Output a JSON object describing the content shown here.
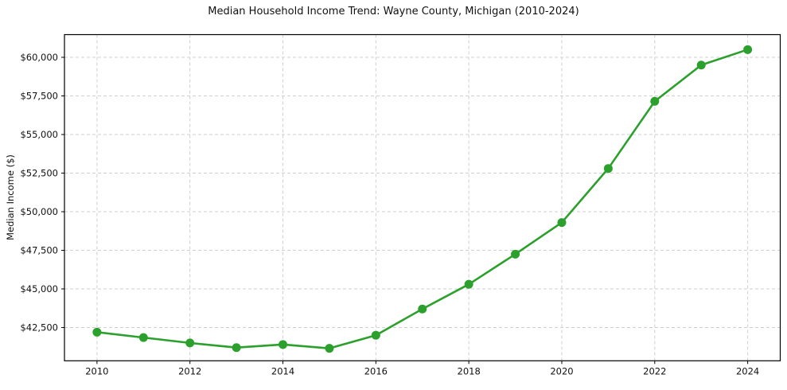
{
  "chart_data": {
    "type": "line",
    "title": "Median Household Income Trend: Wayne County, Michigan (2010-2024)",
    "xlabel": "",
    "ylabel": "Median Income ($)",
    "x": [
      2010,
      2011,
      2012,
      2013,
      2014,
      2015,
      2016,
      2017,
      2018,
      2019,
      2020,
      2021,
      2022,
      2023,
      2024
    ],
    "series": [
      {
        "name": "Median Household Income",
        "values": [
          42200,
          41850,
          41500,
          41200,
          41400,
          41150,
          42000,
          43700,
          45300,
          47250,
          49300,
          52800,
          57150,
          59500,
          60500
        ],
        "color": "#2ca02c",
        "marker": "circle"
      }
    ],
    "x_tick_values": [
      2010,
      2012,
      2014,
      2016,
      2018,
      2020,
      2022,
      2024
    ],
    "x_tick_labels": [
      "2010",
      "2012",
      "2014",
      "2016",
      "2018",
      "2020",
      "2022",
      "2024"
    ],
    "y_tick_values": [
      42500,
      45000,
      47500,
      50000,
      52500,
      55000,
      57500,
      60000
    ],
    "y_tick_labels": [
      "$42,500",
      "$45,000",
      "$47,500",
      "$50,000",
      "$52,500",
      "$55,000",
      "$57,500",
      "$60,000"
    ],
    "xlim": [
      2009.3,
      2024.7
    ],
    "ylim": [
      40345,
      61470
    ],
    "grid": true,
    "grid_style": "dashed",
    "legend_position": "none",
    "colors": {
      "line": "#2ca02c",
      "grid": "#cfcfcf",
      "spine": "#000000",
      "text": "#111111",
      "background": "#ffffff"
    }
  }
}
